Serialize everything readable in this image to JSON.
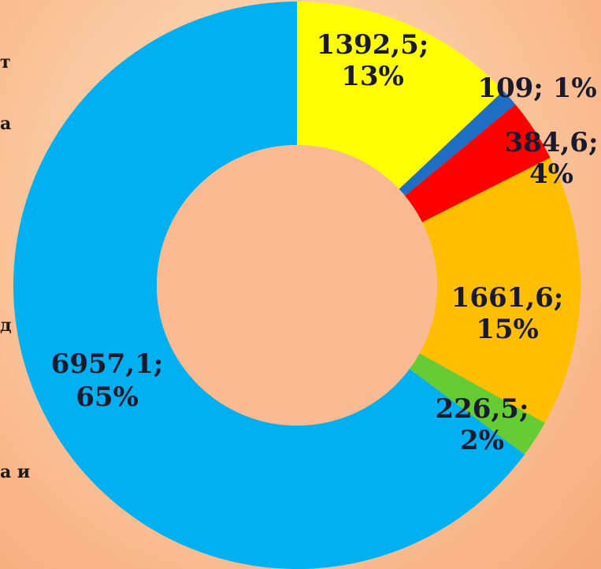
{
  "legend_fragments": [
    "т",
    "а",
    "д",
    "а и"
  ],
  "chart_data": {
    "type": "pie",
    "style": "donut",
    "slices": [
      {
        "value": 1392.5,
        "percent": 13,
        "color": "#ffff00",
        "label_lines": [
          "1392,5;",
          "13%"
        ]
      },
      {
        "value": 109,
        "percent": 1,
        "color": "#1e6fc4",
        "label_lines": [
          "109; 1%"
        ]
      },
      {
        "value": 384.6,
        "percent": 4,
        "color": "#ff0000",
        "label_lines": [
          "384,6;",
          "4%"
        ]
      },
      {
        "value": 1661.6,
        "percent": 15,
        "color": "#ffbf00",
        "label_lines": [
          "1661,6;",
          "15%"
        ]
      },
      {
        "value": 226.5,
        "percent": 2,
        "color": "#66cc33",
        "label_lines": [
          "226,5;",
          "2%"
        ]
      },
      {
        "value": 6957.1,
        "percent": 65,
        "color": "#00b0f0",
        "label_lines": [
          "6957,1;",
          "65%"
        ]
      }
    ],
    "start_angle_deg": 0,
    "direction": "clockwise",
    "hole_color": "#f9b991"
  }
}
